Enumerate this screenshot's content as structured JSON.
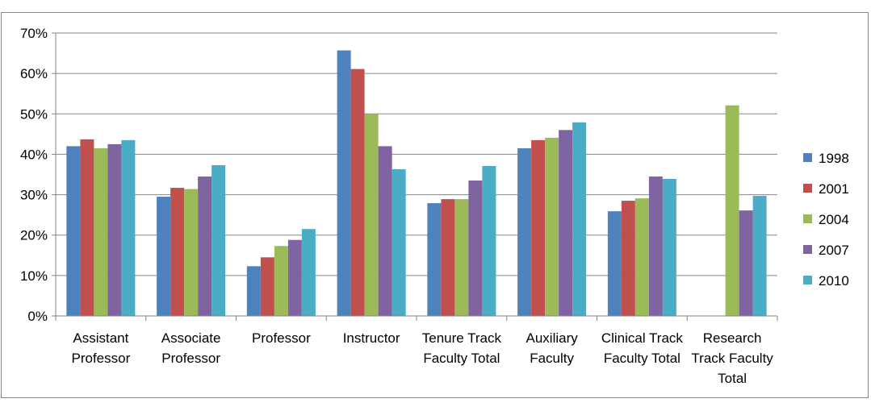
{
  "chart_data": {
    "type": "bar",
    "categories": [
      [
        "Assistant",
        "Professor"
      ],
      [
        "Associate",
        "Professor"
      ],
      [
        "Professor"
      ],
      [
        "Instructor"
      ],
      [
        "Tenure Track",
        "Faculty Total"
      ],
      [
        "Auxiliary",
        "Faculty"
      ],
      [
        "Clinical Track",
        "Faculty Total"
      ],
      [
        "Research",
        "Track Faculty",
        "Total"
      ]
    ],
    "series": [
      {
        "name": "1998",
        "color": "#4F81BD",
        "values": [
          42,
          29.5,
          12.3,
          65.7,
          27.9,
          41.5,
          25.9,
          null
        ]
      },
      {
        "name": "2001",
        "color": "#C0504D",
        "values": [
          43.7,
          31.7,
          14.5,
          61.1,
          28.9,
          43.5,
          28.5,
          null
        ]
      },
      {
        "name": "2004",
        "color": "#9BBB59",
        "values": [
          41.5,
          31.4,
          17.3,
          50,
          28.9,
          44.1,
          29.1,
          52.1
        ]
      },
      {
        "name": "2007",
        "color": "#8064A2",
        "values": [
          42.5,
          34.5,
          18.8,
          42,
          33.5,
          46,
          34.5,
          26.1
        ]
      },
      {
        "name": "2010",
        "color": "#4BACC6",
        "values": [
          43.5,
          37.3,
          21.5,
          36.3,
          37.1,
          47.9,
          33.9,
          29.7
        ]
      }
    ],
    "ylim": [
      0,
      70
    ],
    "yticks": [
      0,
      10,
      20,
      30,
      40,
      50,
      60,
      70
    ],
    "ytick_labels": [
      "0%",
      "10%",
      "20%",
      "30%",
      "40%",
      "50%",
      "60%",
      "70%"
    ],
    "grid": true,
    "legend": "right",
    "title": "",
    "xlabel": "",
    "ylabel": ""
  }
}
